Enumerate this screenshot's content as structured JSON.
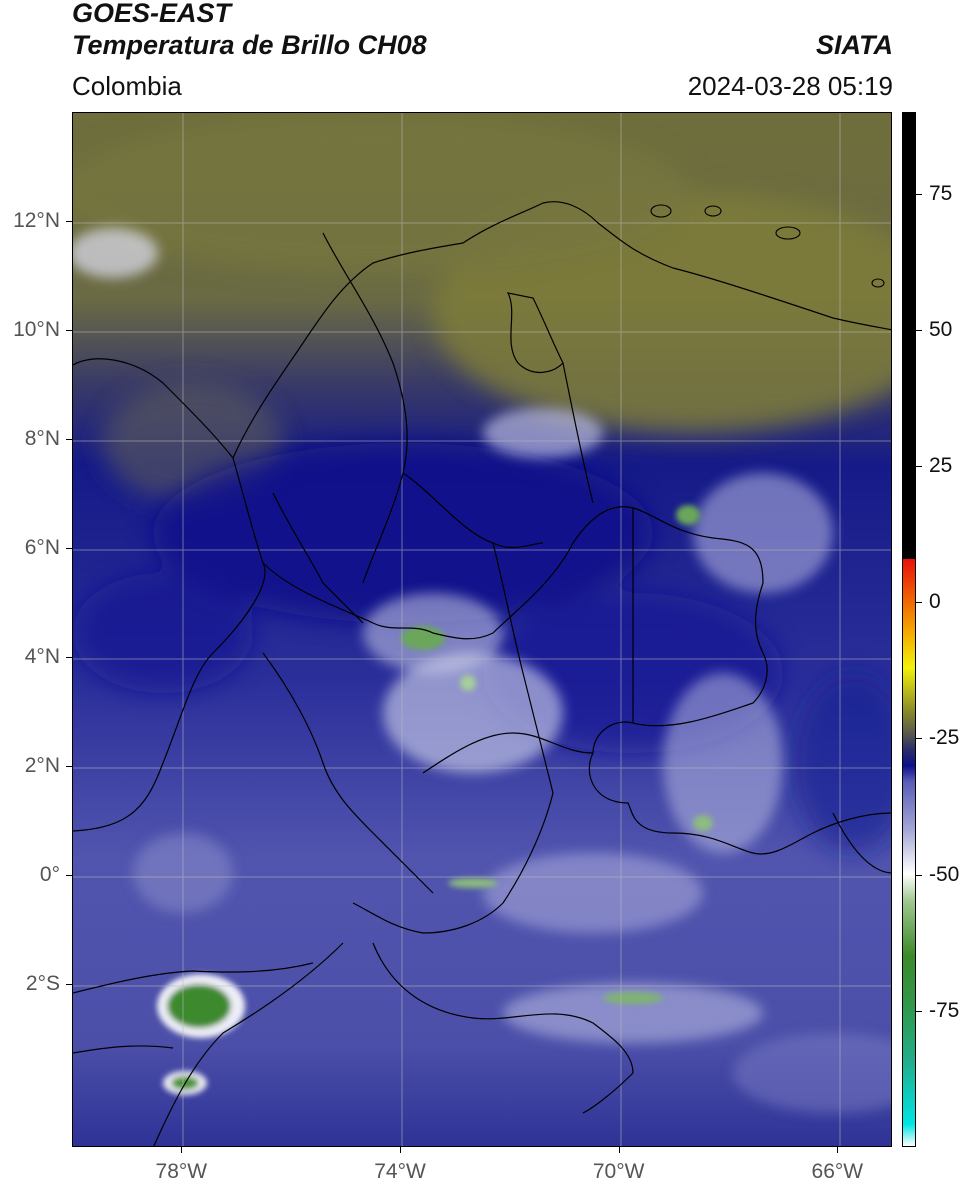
{
  "header": {
    "satellite": "GOES-EAST",
    "product": "Temperatura de Brillo CH08",
    "brand": "SIATA",
    "region": "Colombia",
    "timestamp": "2024-03-28 05:19"
  },
  "map": {
    "lon_range": [
      -80,
      -65
    ],
    "lat_range": [
      -5,
      14
    ],
    "lat_ticks": [
      {
        "value": 12,
        "label": "12°N"
      },
      {
        "value": 10,
        "label": "10°N"
      },
      {
        "value": 8,
        "label": "8°N"
      },
      {
        "value": 6,
        "label": "6°N"
      },
      {
        "value": 4,
        "label": "4°N"
      },
      {
        "value": 2,
        "label": "2°N"
      },
      {
        "value": 0,
        "label": "0°"
      },
      {
        "value": -2,
        "label": "2°S"
      }
    ],
    "lon_ticks": [
      {
        "value": -78,
        "label": "78°W"
      },
      {
        "value": -74,
        "label": "74°W"
      },
      {
        "value": -70,
        "label": "70°W"
      },
      {
        "value": -66,
        "label": "66°W"
      }
    ],
    "grid": true
  },
  "colorbar": {
    "range": [
      -100,
      90
    ],
    "ticks": [
      {
        "value": 75,
        "label": "75"
      },
      {
        "value": 50,
        "label": "50"
      },
      {
        "value": 25,
        "label": "25"
      },
      {
        "value": 0,
        "label": "0"
      },
      {
        "value": -25,
        "label": "-25"
      },
      {
        "value": -50,
        "label": "-50"
      },
      {
        "value": -75,
        "label": "-75"
      }
    ],
    "stops": [
      {
        "value": -100,
        "color": "#ffffff"
      },
      {
        "value": -96,
        "color": "#00e5e5"
      },
      {
        "value": -85,
        "color": "#20b090"
      },
      {
        "value": -75,
        "color": "#2f9a4e"
      },
      {
        "value": -65,
        "color": "#3b8a2a"
      },
      {
        "value": -55,
        "color": "#9ec78e"
      },
      {
        "value": -50,
        "color": "#ffffff"
      },
      {
        "value": -42,
        "color": "#a5a8d6"
      },
      {
        "value": -33,
        "color": "#5a5db8"
      },
      {
        "value": -30,
        "color": "#0b108a"
      },
      {
        "value": -27,
        "color": "#2c2f6a"
      },
      {
        "value": -24,
        "color": "#5b5a4a"
      },
      {
        "value": -20,
        "color": "#8a8a2a"
      },
      {
        "value": -12,
        "color": "#f2f20a"
      },
      {
        "value": -5,
        "color": "#f5a300"
      },
      {
        "value": 8,
        "color": "#e8100a"
      },
      {
        "value": 8.01,
        "color": "#000000"
      },
      {
        "value": 90,
        "color": "#000000"
      }
    ]
  }
}
